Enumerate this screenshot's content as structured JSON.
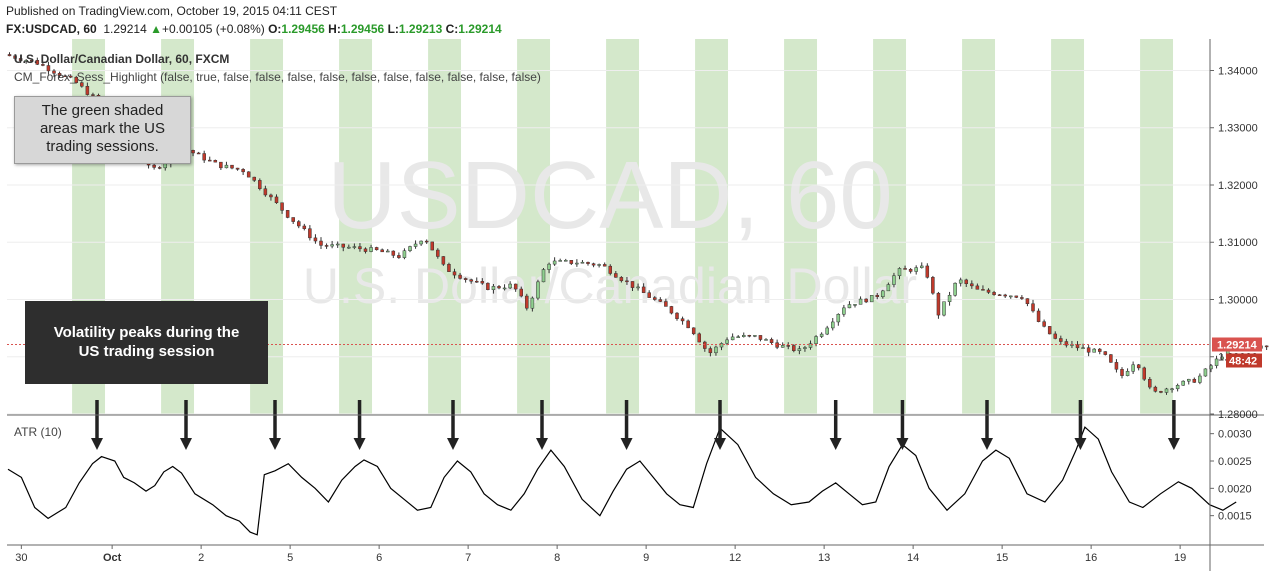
{
  "header": {
    "published": "Published on TradingView.com, October 19, 2015 04:11 CEST",
    "symbol": "FX:USDCAD, 60",
    "last": "1.29214",
    "change": "+0.00105 (+0.08%)",
    "o_label": "O:",
    "o_value": "1.29456",
    "h_label": "H:",
    "h_value": "1.29456",
    "l_label": "L:",
    "l_value": "1.29213",
    "c_label": "C:",
    "c_value": "1.29214"
  },
  "legend": {
    "instrument": "U.S. Dollar/Canadian Dollar, 60, FXCM",
    "indicator": "CM_Forex_Sess_Highlight (false, true, false, false, false, false, false, false, false, false, false, false)"
  },
  "watermark": {
    "line1": "USDCAD, 60",
    "line2": "U.S. Dollar/Canadian Dollar"
  },
  "notes": {
    "sessions": [
      "The green shaded",
      "areas mark the US",
      "trading sessions."
    ],
    "volatility": [
      "Volatility peaks during the",
      "US trading session"
    ]
  },
  "colors": {
    "session": "#d4e8cb",
    "up": "#8fcf8f",
    "down": "#c0392b",
    "atr": "#000000",
    "price_line": "#d9534f",
    "price_tag": "#d9534f",
    "arrow": "#222222"
  },
  "chart_data": [
    {
      "type": "candlestick",
      "title": "U.S. Dollar/Canadian Dollar, 60, FXCM",
      "x_ticks": [
        "30",
        "Oct",
        "2",
        "5",
        "6",
        "7",
        "8",
        "9",
        "12",
        "13",
        "14",
        "15",
        "16",
        "19"
      ],
      "y_ticks": [
        "1.28000",
        "1.29000",
        "1.30000",
        "1.31000",
        "1.32000",
        "1.33000",
        "1.34000"
      ],
      "ylim": [
        1.28,
        1.3455
      ],
      "last_price_label": "1.29214",
      "countdown_label": "48:42",
      "last_price": 1.29214,
      "us_sessions": [
        [
          0.72,
          1.09
        ],
        [
          1.72,
          2.09
        ],
        [
          2.72,
          3.09
        ],
        [
          3.72,
          4.09
        ],
        [
          4.72,
          5.09
        ],
        [
          5.72,
          6.09
        ],
        [
          6.72,
          7.09
        ],
        [
          7.72,
          8.09
        ],
        [
          8.72,
          9.09
        ],
        [
          9.72,
          10.09
        ],
        [
          10.72,
          11.09
        ],
        [
          11.72,
          12.09
        ],
        [
          12.72,
          13.09
        ]
      ],
      "trend_path": [
        [
          0.0,
          1.3428
        ],
        [
          0.35,
          1.3415
        ],
        [
          0.8,
          1.338
        ],
        [
          1.1,
          1.334
        ],
        [
          1.45,
          1.327
        ],
        [
          1.65,
          1.3225
        ],
        [
          2.05,
          1.3262
        ],
        [
          2.4,
          1.3235
        ],
        [
          2.7,
          1.3225
        ],
        [
          2.95,
          1.3185
        ],
        [
          3.2,
          1.3145
        ],
        [
          3.55,
          1.3095
        ],
        [
          3.95,
          1.309
        ],
        [
          4.2,
          1.3085
        ],
        [
          4.45,
          1.3075
        ],
        [
          4.72,
          1.311
        ],
        [
          4.95,
          1.3055
        ],
        [
          5.2,
          1.3035
        ],
        [
          5.45,
          1.302
        ],
        [
          5.72,
          1.3025
        ],
        [
          5.88,
          1.2985
        ],
        [
          6.1,
          1.3065
        ],
        [
          6.45,
          1.3065
        ],
        [
          6.72,
          1.306
        ],
        [
          6.95,
          1.3035
        ],
        [
          7.2,
          1.301
        ],
        [
          7.45,
          1.2985
        ],
        [
          7.72,
          1.295
        ],
        [
          7.92,
          1.2905
        ],
        [
          8.15,
          1.2935
        ],
        [
          8.45,
          1.2935
        ],
        [
          8.7,
          1.292
        ],
        [
          8.95,
          1.291
        ],
        [
          9.2,
          1.2945
        ],
        [
          9.45,
          1.299
        ],
        [
          9.8,
          1.3005
        ],
        [
          10.05,
          1.305
        ],
        [
          10.35,
          1.3055
        ],
        [
          10.5,
          1.2975
        ],
        [
          10.72,
          1.3035
        ],
        [
          10.95,
          1.3015
        ],
        [
          11.2,
          1.301
        ],
        [
          11.45,
          1.3005
        ],
        [
          11.65,
          1.2955
        ],
        [
          11.85,
          1.2925
        ],
        [
          12.1,
          1.2915
        ],
        [
          12.35,
          1.2905
        ],
        [
          12.55,
          1.2865
        ],
        [
          12.72,
          1.2895
        ],
        [
          12.9,
          1.2835
        ],
        [
          13.15,
          1.285
        ],
        [
          13.4,
          1.286
        ],
        [
          13.7,
          1.2905
        ],
        [
          13.95,
          1.292
        ],
        [
          14.25,
          1.2915
        ],
        [
          14.45,
          1.2925
        ]
      ]
    },
    {
      "type": "line",
      "title": "ATR (10)",
      "y_ticks": [
        "0.0015",
        "0.0020",
        "0.0025",
        "0.0030"
      ],
      "ylim": [
        0.001,
        0.00325
      ],
      "series": [
        {
          "values": [
            [
              0.0,
              0.00235
            ],
            [
              0.15,
              0.0022
            ],
            [
              0.3,
              0.00165
            ],
            [
              0.45,
              0.00145
            ],
            [
              0.55,
              0.00155
            ],
            [
              0.65,
              0.00165
            ],
            [
              0.8,
              0.0021
            ],
            [
              0.95,
              0.00245
            ],
            [
              1.05,
              0.00258
            ],
            [
              1.2,
              0.0025
            ],
            [
              1.3,
              0.0022
            ],
            [
              1.42,
              0.0021
            ],
            [
              1.55,
              0.00195
            ],
            [
              1.65,
              0.00205
            ],
            [
              1.75,
              0.0023
            ],
            [
              1.85,
              0.0024
            ],
            [
              1.95,
              0.00228
            ],
            [
              2.1,
              0.0019
            ],
            [
              2.3,
              0.0017
            ],
            [
              2.45,
              0.0015
            ],
            [
              2.6,
              0.0014
            ],
            [
              2.72,
              0.0012
            ],
            [
              2.8,
              0.00115
            ],
            [
              2.88,
              0.00225
            ],
            [
              3.0,
              0.00232
            ],
            [
              3.15,
              0.00245
            ],
            [
              3.3,
              0.0022
            ],
            [
              3.45,
              0.002
            ],
            [
              3.6,
              0.00175
            ],
            [
              3.75,
              0.00215
            ],
            [
              3.9,
              0.0024
            ],
            [
              4.0,
              0.00252
            ],
            [
              4.15,
              0.0024
            ],
            [
              4.3,
              0.002
            ],
            [
              4.45,
              0.0018
            ],
            [
              4.6,
              0.0016
            ],
            [
              4.75,
              0.00165
            ],
            [
              4.9,
              0.0022
            ],
            [
              5.05,
              0.0025
            ],
            [
              5.2,
              0.0023
            ],
            [
              5.35,
              0.0019
            ],
            [
              5.5,
              0.0017
            ],
            [
              5.65,
              0.0016
            ],
            [
              5.8,
              0.0019
            ],
            [
              5.95,
              0.00235
            ],
            [
              6.1,
              0.0027
            ],
            [
              6.25,
              0.0024
            ],
            [
              6.45,
              0.0018
            ],
            [
              6.65,
              0.0015
            ],
            [
              6.8,
              0.00195
            ],
            [
              6.95,
              0.00235
            ],
            [
              7.1,
              0.0025
            ],
            [
              7.25,
              0.0022
            ],
            [
              7.4,
              0.0019
            ],
            [
              7.55,
              0.0017
            ],
            [
              7.7,
              0.00165
            ],
            [
              7.85,
              0.00245
            ],
            [
              8.0,
              0.0031
            ],
            [
              8.2,
              0.0028
            ],
            [
              8.4,
              0.0022
            ],
            [
              8.6,
              0.0019
            ],
            [
              8.8,
              0.0017
            ],
            [
              9.0,
              0.00175
            ],
            [
              9.15,
              0.00195
            ],
            [
              9.3,
              0.0021
            ],
            [
              9.45,
              0.0019
            ],
            [
              9.6,
              0.0017
            ],
            [
              9.75,
              0.00175
            ],
            [
              9.9,
              0.0024
            ],
            [
              10.05,
              0.0028
            ],
            [
              10.2,
              0.0026
            ],
            [
              10.35,
              0.002
            ],
            [
              10.55,
              0.0016
            ],
            [
              10.75,
              0.0019
            ],
            [
              10.95,
              0.0025
            ],
            [
              11.1,
              0.0027
            ],
            [
              11.25,
              0.00255
            ],
            [
              11.45,
              0.0019
            ],
            [
              11.65,
              0.00175
            ],
            [
              11.85,
              0.00215
            ],
            [
              12.0,
              0.0027
            ],
            [
              12.1,
              0.00312
            ],
            [
              12.25,
              0.0029
            ],
            [
              12.4,
              0.0023
            ],
            [
              12.6,
              0.00175
            ],
            [
              12.75,
              0.00165
            ],
            [
              12.95,
              0.0019
            ],
            [
              13.15,
              0.00212
            ],
            [
              13.3,
              0.002
            ],
            [
              13.5,
              0.0017
            ],
            [
              13.65,
              0.0016
            ],
            [
              13.8,
              0.00175
            ]
          ]
        }
      ]
    }
  ],
  "annotation_arrows": [
    1.0,
    2.0,
    3.0,
    3.95,
    5.0,
    6.0,
    6.95,
    8.0,
    9.3,
    10.05,
    11.0,
    12.05,
    13.1
  ]
}
